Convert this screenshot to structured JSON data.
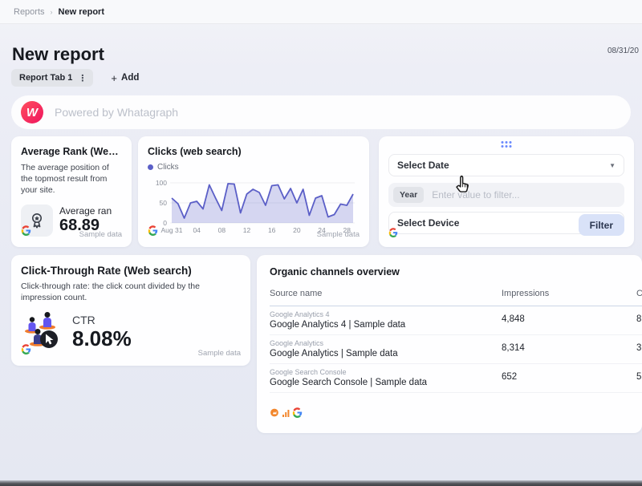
{
  "breadcrumb": {
    "section": "Reports",
    "separator": "›",
    "current": "New report"
  },
  "header": {
    "title": "New report",
    "date": "08/31/20",
    "tab_label": "Report Tab 1",
    "add_label": "Add"
  },
  "banner": {
    "text": "Powered by Whatagraph",
    "logo_letter": "W",
    "logo_color": "#ef155e"
  },
  "cards": {
    "average_rank": {
      "title": "Average Rank (Web ...",
      "description": "The average position of the topmost result from your site.",
      "metric_label": "Average ran",
      "metric_value": "68.89",
      "source_note": "Sample data"
    },
    "clicks": {
      "title": "Clicks (web search)",
      "legend_label": "Clicks",
      "source_note": "Sample data"
    },
    "filter": {
      "select_date_label": "Select Date",
      "filter_key": "Year",
      "filter_placeholder": "Enter value to filter...",
      "select_device_label": "Select Device",
      "button_label": "Filter"
    },
    "ctr": {
      "title": "Click-Through Rate (Web search)",
      "description": "Click-through rate: the click count divided by the impression count.",
      "metric_label": "CTR",
      "metric_value": "8.08%",
      "source_note": "Sample data"
    },
    "table": {
      "title": "Organic channels overview",
      "columns": [
        "Source name",
        "Impressions",
        "C"
      ],
      "rows": [
        {
          "source_small": "Google Analytics 4",
          "source": "Google Analytics 4 | Sample data",
          "impressions": "4,848",
          "clipped_value": "8"
        },
        {
          "source_small": "Google Analytics",
          "source": "Google Analytics | Sample data",
          "impressions": "8,314",
          "clipped_value": "3"
        },
        {
          "source_small": "Google Search Console",
          "source": "Google Search Console | Sample data",
          "impressions": "652",
          "clipped_value": "5"
        }
      ]
    }
  },
  "chart_data": {
    "type": "area",
    "title": "Clicks (web search)",
    "series": [
      {
        "name": "Clicks",
        "values": [
          62,
          48,
          12,
          50,
          54,
          35,
          95,
          62,
          31,
          98,
          97,
          25,
          72,
          84,
          76,
          44,
          93,
          95,
          60,
          86,
          50,
          84,
          19,
          62,
          68,
          15,
          21,
          47,
          44,
          72
        ]
      }
    ],
    "x_tick_labels": [
      "Aug 31",
      "04",
      "08",
      "12",
      "16",
      "20",
      "24",
      "28"
    ],
    "x_tick_positions": [
      0,
      4,
      8,
      12,
      16,
      20,
      24,
      28
    ],
    "y_ticks": [
      0,
      50,
      100
    ],
    "ylim": [
      0,
      100
    ],
    "grid": true,
    "legend_position": "top-left",
    "line_color": "#5b5fc7",
    "fill_color": "rgba(91,95,199,0.25)",
    "axis_text_color": "#8a8f9a",
    "grid_color": "#ededf2"
  }
}
